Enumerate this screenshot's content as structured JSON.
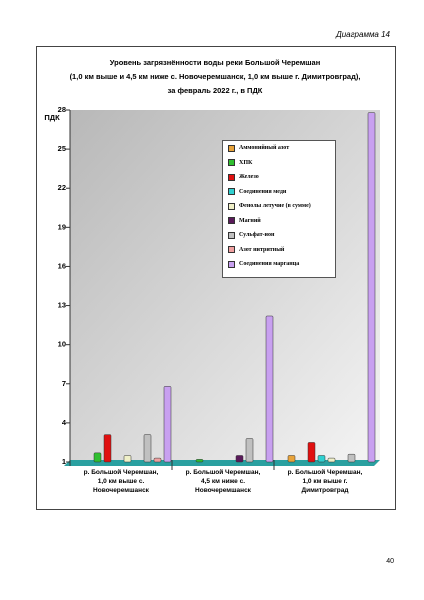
{
  "header": "Диаграмма 14",
  "page_number": "40",
  "chart_data": {
    "type": "bar",
    "title": "Уровень загрязнённости воды реки Большой Черемшан\n(1,0 км выше и 4,5 км ниже с. Новочеремшанск, 1,0 км выше г. Димитровград),\nза февраль 2022 г., в ПДК",
    "y_label": "ПДК",
    "categories": [
      "р. Большой Черемшан,\n1,0 км выше с.\nНовочеремшанск",
      "р. Большой Черемшан,\n4,5 км ниже с.\nНовочеремшанск",
      "р. Большой Черемшан,\n1,0 км выше г.\nДимитровград"
    ],
    "series": [
      {
        "name": "Аммонийный азот",
        "color": "#e8a33a",
        "values": [
          null,
          null,
          1.5
        ]
      },
      {
        "name": "ХПК",
        "color": "#2fbf2f",
        "values": [
          1.7,
          1.2,
          null
        ]
      },
      {
        "name": "Железо",
        "color": "#e01010",
        "values": [
          3.1,
          null,
          2.5
        ]
      },
      {
        "name": "Соединения меди",
        "color": "#30d0d0",
        "values": [
          null,
          null,
          1.5
        ]
      },
      {
        "name": "Фенолы летучие (в сумме)",
        "color": "#f0f0c8",
        "values": [
          1.5,
          null,
          1.3
        ]
      },
      {
        "name": "Магний",
        "color": "#5a1a5a",
        "values": [
          null,
          1.5,
          null
        ]
      },
      {
        "name": "Сульфат-ион",
        "color": "#c0c0c0",
        "values": [
          3.1,
          2.8,
          1.6
        ]
      },
      {
        "name": "Азот нитритный",
        "color": "#f0a0a0",
        "values": [
          1.3,
          null,
          null
        ]
      },
      {
        "name": "Соединения марганца",
        "color": "#c8a0f0",
        "values": [
          6.8,
          12.2,
          27.8
        ]
      }
    ],
    "ylim": [
      1,
      28
    ],
    "yticks": [
      1,
      4,
      7,
      10,
      13,
      16,
      19,
      22,
      25,
      28
    ],
    "grid": false
  }
}
